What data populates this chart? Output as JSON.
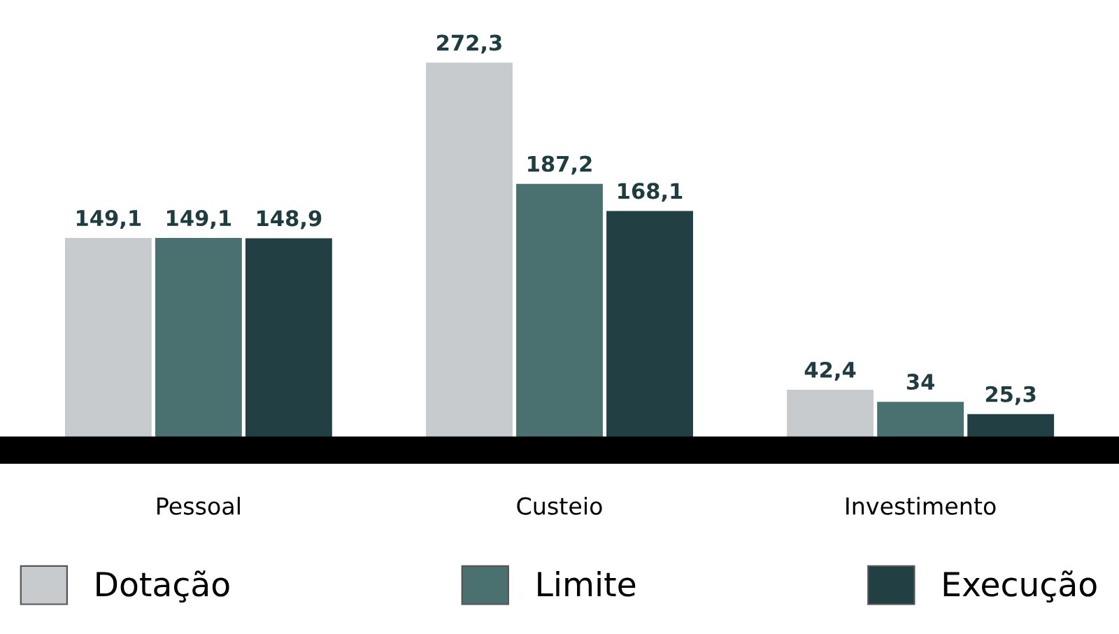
{
  "chart_data": {
    "type": "bar",
    "categories": [
      "Pessoal",
      "Custeio",
      "Investimento"
    ],
    "series": [
      {
        "name": "Dotação",
        "color": "#c8cbcd",
        "values": [
          149.1,
          272.3,
          42.4
        ],
        "value_labels": [
          "149,1",
          "272,3",
          "42,4"
        ]
      },
      {
        "name": "Limite",
        "color": "#4a7070",
        "values": [
          149.1,
          187.2,
          34
        ],
        "value_labels": [
          "149,1",
          "187,2",
          "34"
        ]
      },
      {
        "name": "Execução",
        "color": "#224044",
        "values": [
          148.9,
          168.1,
          25.3
        ],
        "value_labels": [
          "148,9",
          "168,1",
          "25,3"
        ]
      }
    ],
    "legend": "bottom",
    "grid": false
  }
}
